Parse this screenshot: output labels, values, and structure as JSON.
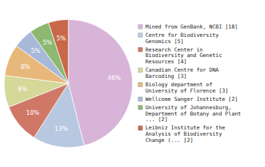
{
  "chart_data": {
    "type": "pie",
    "categories": [
      "Mined from GenBank, NCBI [18]",
      "Centre for Biodiversity\nGenomics [5]",
      "Research Center in\nBiodiversity and Genetic\nResources [4]",
      "Canadian Centre for DNA\nBarcoding [3]",
      "Biology department of\nUniversity of Florence [3]",
      "Wellcome Sanger Institute [2]",
      "University of Johannesburg,\nDepartment of Botany and Plant\n... [2]",
      "Leibniz Institute for the\nAnalysis of Biodiversity\nChange (... [2]"
    ],
    "values": [
      46,
      13,
      10,
      8,
      8,
      5,
      5,
      5
    ],
    "value_labels": [
      "46%",
      "13%",
      "10%",
      "8%",
      "8%",
      "5%",
      "5%",
      "5%"
    ],
    "colors": [
      "#d8b4d8",
      "#b8c8e0",
      "#d07868",
      "#d4d898",
      "#e8b87a",
      "#a8b8d8",
      "#8db870",
      "#c86848"
    ],
    "data_labels": true,
    "legend": "right"
  }
}
